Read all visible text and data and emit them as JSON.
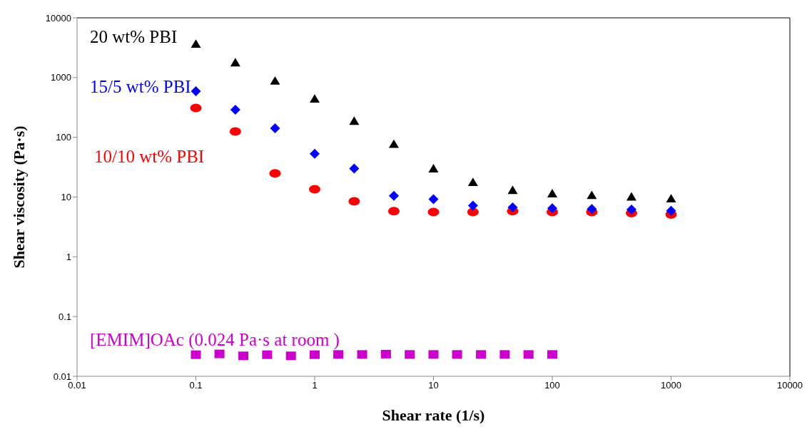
{
  "chart_data": {
    "type": "scatter",
    "xlabel": "Shear rate (1/s)",
    "ylabel": "Shear viscosity (Pa·s)",
    "log": "xy",
    "grid": false,
    "legend": false,
    "xlim": [
      0.01,
      10000
    ],
    "xticks": [
      0.01,
      0.1,
      1,
      10,
      100,
      1000,
      10000
    ],
    "ylim": [
      0.01,
      10000
    ],
    "yticks": [
      0.01,
      0.1,
      1,
      10,
      100,
      1000,
      10000
    ],
    "series": [
      {
        "name": "20 wt% PBI",
        "color": "#000000",
        "marker": "triangle",
        "x": [
          0.1,
          0.215,
          0.464,
          1,
          2.15,
          4.64,
          10,
          21.5,
          46.4,
          100,
          215,
          464,
          1000
        ],
        "values": [
          3600,
          1760,
          870,
          435,
          185,
          76,
          29.5,
          17.5,
          12.9,
          11.3,
          10.6,
          10,
          9.3
        ]
      },
      {
        "name": "15/5 wt% PBI",
        "color": "#0000ff",
        "marker": "diamond",
        "x": [
          0.1,
          0.215,
          0.464,
          1,
          2.15,
          4.64,
          10,
          21.5,
          46.4,
          100,
          215,
          464,
          1000
        ],
        "values": [
          590,
          290,
          142,
          53,
          30,
          10.5,
          9.2,
          7.2,
          6.7,
          6.5,
          6.3,
          6.2,
          5.9
        ]
      },
      {
        "name": "10/10 wt% PBI",
        "color": "#ff0000",
        "marker": "circle",
        "x": [
          0.1,
          0.215,
          0.464,
          1,
          2.15,
          4.64,
          10,
          21.5,
          46.4,
          100,
          215,
          464,
          1000
        ],
        "values": [
          310,
          125,
          25,
          13.5,
          8.5,
          5.8,
          5.6,
          5.6,
          5.8,
          5.6,
          5.6,
          5.4,
          5.1
        ]
      },
      {
        "name": "[EMIM]OAc (0.024 Pa·s at room )",
        "color": "#cc00cc",
        "marker": "square",
        "x": [
          0.1,
          0.158,
          0.251,
          0.398,
          0.631,
          1,
          1.58,
          2.51,
          3.98,
          6.31,
          10,
          15.8,
          25.1,
          39.8,
          63.1,
          100
        ],
        "values": [
          0.023,
          0.0237,
          0.022,
          0.023,
          0.022,
          0.023,
          0.0232,
          0.0232,
          0.0235,
          0.0232,
          0.0232,
          0.0232,
          0.0232,
          0.0232,
          0.0232,
          0.0232
        ]
      }
    ]
  }
}
